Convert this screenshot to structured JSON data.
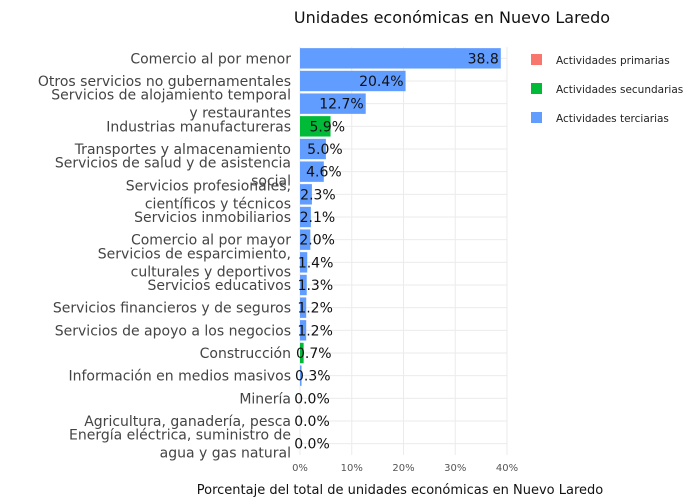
{
  "chart_data": {
    "type": "bar",
    "orientation": "horizontal",
    "title": "Unidades económicas en Nuevo Laredo",
    "xlabel": "Porcentaje del total de unidades económicas en Nuevo Laredo",
    "ylabel": "",
    "xlim": [
      0,
      40
    ],
    "xticks": [
      "0%",
      "10%",
      "20%",
      "30%",
      "40%"
    ],
    "grid": true,
    "legend_position": "right",
    "colors": {
      "Actividades primarias": "#f8766d",
      "Actividades secundarias": "#00ba38",
      "Actividades terciarias": "#619cff"
    },
    "legend": [
      "Actividades primarias",
      "Actividades secundarias",
      "Actividades terciarias"
    ],
    "bars": [
      {
        "label": [
          "Comercio al por menor"
        ],
        "value": 38.8,
        "text": "38.8",
        "group": "Actividades terciarias"
      },
      {
        "label": [
          "Otros servicios no gubernamentales"
        ],
        "value": 20.4,
        "text": "20.4%",
        "group": "Actividades terciarias"
      },
      {
        "label": [
          "Servicios de alojamiento temporal",
          "y restaurantes"
        ],
        "value": 12.7,
        "text": "12.7%",
        "group": "Actividades terciarias"
      },
      {
        "label": [
          "Industrias manufactureras"
        ],
        "value": 5.9,
        "text": "5.9%",
        "group": "Actividades secundarias"
      },
      {
        "label": [
          "Transportes y almacenamiento"
        ],
        "value": 5.0,
        "text": "5.0%",
        "group": "Actividades terciarias"
      },
      {
        "label": [
          "Servicios de salud y de asistencia",
          "social"
        ],
        "value": 4.6,
        "text": "4.6%",
        "group": "Actividades terciarias"
      },
      {
        "label": [
          "Servicios profesionales,",
          "científicos y técnicos"
        ],
        "value": 2.3,
        "text": "2.3%",
        "group": "Actividades terciarias"
      },
      {
        "label": [
          "Servicios inmobiliarios"
        ],
        "value": 2.1,
        "text": "2.1%",
        "group": "Actividades terciarias"
      },
      {
        "label": [
          "Comercio al por mayor"
        ],
        "value": 2.0,
        "text": "2.0%",
        "group": "Actividades terciarias"
      },
      {
        "label": [
          "Servicios de esparcimiento,",
          "culturales y deportivos"
        ],
        "value": 1.4,
        "text": "1.4%",
        "group": "Actividades terciarias"
      },
      {
        "label": [
          "Servicios educativos"
        ],
        "value": 1.3,
        "text": "1.3%",
        "group": "Actividades terciarias"
      },
      {
        "label": [
          "Servicios financieros y de seguros"
        ],
        "value": 1.2,
        "text": "1.2%",
        "group": "Actividades terciarias"
      },
      {
        "label": [
          "Servicios de apoyo a los negocios"
        ],
        "value": 1.2,
        "text": "1.2%",
        "group": "Actividades terciarias"
      },
      {
        "label": [
          "Construcción"
        ],
        "value": 0.7,
        "text": "0.7%",
        "group": "Actividades secundarias"
      },
      {
        "label": [
          "Información en medios masivos"
        ],
        "value": 0.3,
        "text": "0.3%",
        "group": "Actividades terciarias"
      },
      {
        "label": [
          "Minería"
        ],
        "value": 0.0,
        "text": "0.0%",
        "group": "Actividades secundarias"
      },
      {
        "label": [
          "Agricultura, ganadería, pesca"
        ],
        "value": 0.0,
        "text": "0.0%",
        "group": "Actividades primarias"
      },
      {
        "label": [
          "Energía eléctrica, suministro de",
          "agua y gas natural"
        ],
        "value": 0.0,
        "text": "0.0%",
        "group": "Actividades secundarias"
      }
    ]
  }
}
